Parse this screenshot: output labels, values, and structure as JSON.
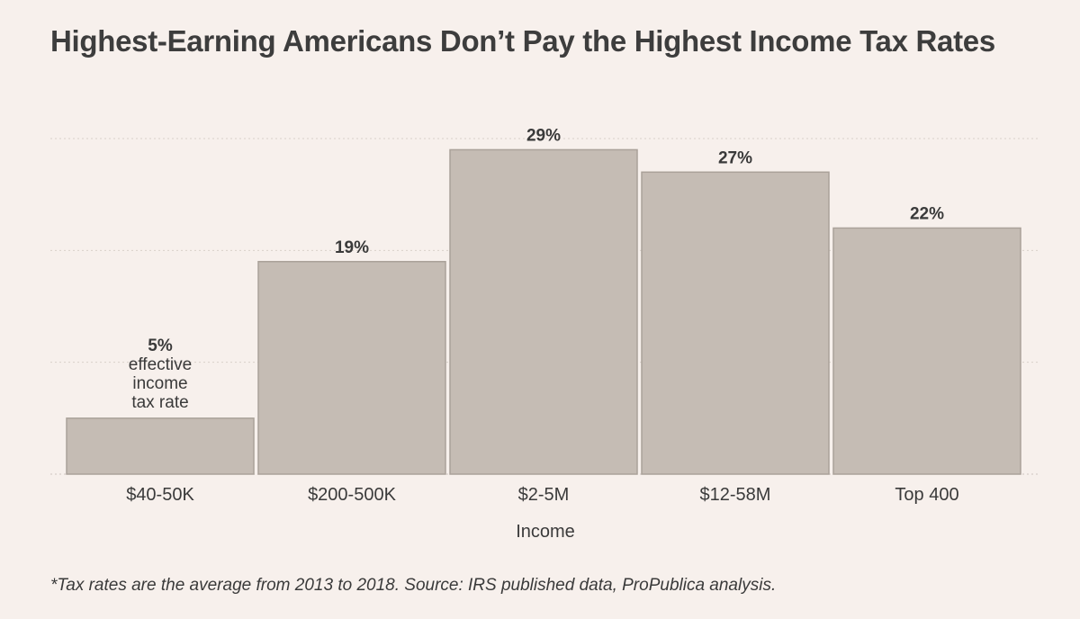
{
  "chart_data": {
    "type": "bar",
    "title": "Highest-Earning Americans Don’t Pay the Highest Income Tax Rates",
    "categories": [
      "$40-50K",
      "$200-500K",
      "$2-5M",
      "$12-58M",
      "Top 400"
    ],
    "values": [
      5,
      19,
      29,
      27,
      22
    ],
    "data_labels": [
      "5%",
      "19%",
      "29%",
      "27%",
      "22%"
    ],
    "first_bar_annotation": [
      "effective",
      "income",
      "tax rate"
    ],
    "xlabel": "Income",
    "ylabel": "",
    "ylim": [
      0,
      30
    ],
    "gridlines": [
      10,
      20,
      30
    ],
    "grid": true,
    "footnote": "*Tax rates are the average from 2013 to 2018. Source: IRS published data, ProPublica analysis.",
    "colors": {
      "bar": "#c5bcb4",
      "bar_edge": "#aaa199",
      "background": "#f7f0ec"
    }
  }
}
